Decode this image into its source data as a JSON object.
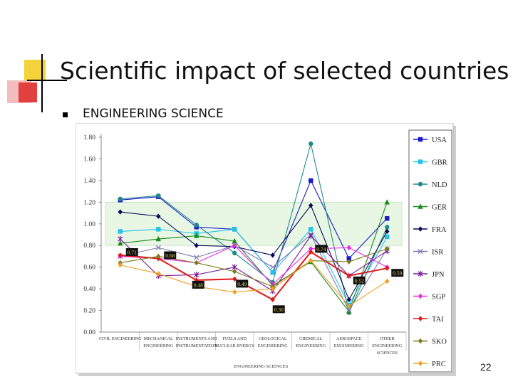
{
  "slide": {
    "title": "Scientific impact of selected countries",
    "bullet": "ENGINEERING SCIENCE",
    "page_number": "22"
  },
  "chart_data": {
    "type": "line",
    "xlabel": "ENGINEERING SCIENCES",
    "ylabel": "",
    "ylim": [
      0,
      1.8
    ],
    "yticks": [
      "0.00",
      "0.20",
      "0.40",
      "0.60",
      "0.80",
      "1.00",
      "1.20",
      "1.40",
      "1.60",
      "1.80"
    ],
    "categories": [
      [
        "CIVIL ENGINEERING"
      ],
      [
        "MECHANICAL",
        "ENGINEERING"
      ],
      [
        "INSTRUMENTS AND",
        "INSTRUMENTATION"
      ],
      [
        "FUELS AND",
        "NUCLEAR ENERGY"
      ],
      [
        "GEOLOGICAL",
        "ENGINEERING"
      ],
      [
        "CHEMICAL",
        "ENGINEERING"
      ],
      [
        "AEROSPACE",
        "ENGINEERING"
      ],
      [
        "OTHER",
        "ENGINEERING",
        "SCIENCES"
      ]
    ],
    "band": [
      0.8,
      1.2
    ],
    "legend_position": "right",
    "series": [
      {
        "name": "USA",
        "color": "#1a1ac8",
        "marker": "square",
        "values": [
          1.22,
          1.25,
          0.97,
          0.95,
          0.55,
          1.4,
          0.68,
          1.05
        ]
      },
      {
        "name": "GBR",
        "color": "#22c4e8",
        "marker": "square",
        "values": [
          0.93,
          0.95,
          0.91,
          0.95,
          0.55,
          0.95,
          0.25,
          0.88
        ]
      },
      {
        "name": "NLD",
        "color": "#1f8a8a",
        "marker": "circle",
        "values": [
          1.23,
          1.26,
          0.99,
          0.73,
          0.46,
          1.74,
          0.18,
          0.97
        ]
      },
      {
        "name": "GER",
        "color": "#1a8a1a",
        "marker": "triangle",
        "values": [
          0.82,
          0.86,
          0.89,
          0.84,
          0.43,
          0.65,
          0.19,
          1.2
        ]
      },
      {
        "name": "FRA",
        "color": "#0a0a5a",
        "marker": "diamond",
        "values": [
          1.11,
          1.07,
          0.8,
          0.79,
          0.71,
          1.17,
          0.3,
          0.93
        ]
      },
      {
        "name": "ISR",
        "color": "#7a7ab0",
        "marker": "x",
        "values": [
          0.7,
          0.78,
          0.69,
          0.8,
          0.6,
          0.9,
          0.2,
          0.77
        ]
      },
      {
        "name": "JPN",
        "color": "#7a1a9a",
        "marker": "star",
        "values": [
          0.86,
          0.52,
          0.53,
          0.6,
          0.38,
          0.89,
          0.52,
          0.75
        ]
      },
      {
        "name": "SGP",
        "color": "#e82ae8",
        "marker": "diamond",
        "values": [
          0.7,
          0.68,
          0.64,
          0.8,
          0.44,
          0.77,
          0.78,
          0.6
        ]
      },
      {
        "name": "TAI",
        "color": "#e01a1a",
        "marker": "diamond",
        "values": [
          0.71,
          0.68,
          0.48,
          0.49,
          0.3,
          0.74,
          0.52,
          0.59
        ]
      },
      {
        "name": "SKO",
        "color": "#7a7a18",
        "marker": "diamond",
        "values": [
          0.64,
          0.7,
          0.64,
          0.56,
          0.42,
          0.66,
          0.65,
          0.77
        ]
      },
      {
        "name": "PRC",
        "color": "#f0a020",
        "marker": "diamond",
        "values": [
          0.62,
          0.54,
          0.42,
          0.37,
          0.4,
          0.66,
          0.24,
          0.47
        ]
      }
    ],
    "annotations": [
      {
        "series": "TAI",
        "index": 0,
        "label": "0.71"
      },
      {
        "series": "TAI",
        "index": 1,
        "label": "0.68"
      },
      {
        "series": "TAI",
        "index": 2,
        "label": "0.48"
      },
      {
        "series": "TAI",
        "index": 3,
        "label": "0.49"
      },
      {
        "series": "TAI",
        "index": 4,
        "label": "0.30"
      },
      {
        "series": "TAI",
        "index": 5,
        "label": "0.74"
      },
      {
        "series": "TAI",
        "index": 6,
        "label": "0.52"
      },
      {
        "series": "TAI",
        "index": 7,
        "label": "0.59"
      }
    ]
  }
}
